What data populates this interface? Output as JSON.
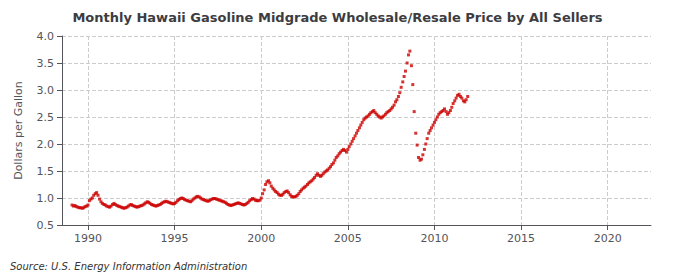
{
  "chart_data": {
    "type": "scatter",
    "title": "Monthly Hawaii Gasoline Midgrade Wholesale/Resale Price by All Sellers",
    "ylabel": "Dollars per Gallon",
    "annotations": [
      "Source: U.S. Energy Information Administration"
    ],
    "color": "#cc0000",
    "marker": "square",
    "grid": true,
    "xlim": [
      1988.5,
      2022.5
    ],
    "xticks": [
      1990,
      1995,
      2000,
      2005,
      2010,
      2015,
      2020
    ],
    "ylim": [
      0.5,
      4.0
    ],
    "yticks": [
      0.5,
      {
        "value": 1.0,
        "label": "1.0"
      },
      1.5,
      {
        "value": 2.0,
        "label": "2.0"
      },
      2.5,
      {
        "value": 3.0,
        "label": "3.0"
      },
      3.5,
      {
        "value": 4.0,
        "label": "4.0"
      }
    ],
    "x": [
      1989.08,
      1989.17,
      1989.25,
      1989.33,
      1989.42,
      1989.5,
      1989.58,
      1989.67,
      1989.75,
      1989.83,
      1989.92,
      1990.0,
      1990.08,
      1990.17,
      1990.25,
      1990.33,
      1990.42,
      1990.5,
      1990.58,
      1990.67,
      1990.75,
      1990.83,
      1990.92,
      1991.0,
      1991.08,
      1991.17,
      1991.25,
      1991.33,
      1991.42,
      1991.5,
      1991.58,
      1991.67,
      1991.75,
      1991.83,
      1991.92,
      1992.0,
      1992.08,
      1992.17,
      1992.25,
      1992.33,
      1992.42,
      1992.5,
      1992.58,
      1992.67,
      1992.75,
      1992.83,
      1992.92,
      1993.0,
      1993.08,
      1993.17,
      1993.25,
      1993.33,
      1993.42,
      1993.5,
      1993.58,
      1993.67,
      1993.75,
      1993.83,
      1993.92,
      1994.0,
      1994.08,
      1994.17,
      1994.25,
      1994.33,
      1994.42,
      1994.5,
      1994.58,
      1994.67,
      1994.75,
      1994.83,
      1994.92,
      1995.0,
      1995.08,
      1995.17,
      1995.25,
      1995.33,
      1995.42,
      1995.5,
      1995.58,
      1995.67,
      1995.75,
      1995.83,
      1995.92,
      1996.0,
      1996.08,
      1996.17,
      1996.25,
      1996.33,
      1996.42,
      1996.5,
      1996.58,
      1996.67,
      1996.75,
      1996.83,
      1996.92,
      1997.0,
      1997.08,
      1997.17,
      1997.25,
      1997.33,
      1997.42,
      1997.5,
      1997.58,
      1997.67,
      1997.75,
      1997.83,
      1997.92,
      1998.0,
      1998.08,
      1998.17,
      1998.25,
      1998.33,
      1998.42,
      1998.5,
      1998.58,
      1998.67,
      1998.75,
      1998.83,
      1998.92,
      1999.0,
      1999.08,
      1999.17,
      1999.25,
      1999.33,
      1999.42,
      1999.5,
      1999.58,
      1999.67,
      1999.75,
      1999.83,
      1999.92,
      2000.0,
      2000.08,
      2000.17,
      2000.25,
      2000.33,
      2000.42,
      2000.5,
      2000.58,
      2000.67,
      2000.75,
      2000.83,
      2000.92,
      2001.0,
      2001.08,
      2001.17,
      2001.25,
      2001.33,
      2001.42,
      2001.5,
      2001.58,
      2001.67,
      2001.75,
      2001.83,
      2001.92,
      2002.0,
      2002.08,
      2002.17,
      2002.25,
      2002.33,
      2002.42,
      2002.5,
      2002.58,
      2002.67,
      2002.75,
      2002.83,
      2002.92,
      2003.0,
      2003.08,
      2003.17,
      2003.25,
      2003.33,
      2003.42,
      2003.5,
      2003.58,
      2003.67,
      2003.75,
      2003.83,
      2003.92,
      2004.0,
      2004.08,
      2004.17,
      2004.25,
      2004.33,
      2004.42,
      2004.5,
      2004.58,
      2004.67,
      2004.75,
      2004.83,
      2004.92,
      2005.0,
      2005.08,
      2005.17,
      2005.25,
      2005.33,
      2005.42,
      2005.5,
      2005.58,
      2005.67,
      2005.75,
      2005.83,
      2005.92,
      2006.0,
      2006.08,
      2006.17,
      2006.25,
      2006.33,
      2006.42,
      2006.5,
      2006.58,
      2006.67,
      2006.75,
      2006.83,
      2006.92,
      2007.0,
      2007.08,
      2007.17,
      2007.25,
      2007.33,
      2007.42,
      2007.5,
      2007.58,
      2007.67,
      2007.75,
      2007.83,
      2007.92,
      2008.0,
      2008.08,
      2008.17,
      2008.25,
      2008.33,
      2008.42,
      2008.5,
      2008.58,
      2008.67,
      2008.75,
      2008.83,
      2008.92,
      2009.0,
      2009.08,
      2009.17,
      2009.25,
      2009.33,
      2009.42,
      2009.5,
      2009.58,
      2009.67,
      2009.75,
      2009.83,
      2009.92,
      2010.0,
      2010.08,
      2010.17,
      2010.25,
      2010.33,
      2010.42,
      2010.5,
      2010.58,
      2010.67,
      2010.75,
      2010.83,
      2010.92,
      2011.0,
      2011.08,
      2011.17,
      2011.25,
      2011.33,
      2011.42,
      2011.5,
      2011.58,
      2011.67,
      2011.75,
      2011.83,
      2011.92
    ],
    "values": [
      0.87,
      0.85,
      0.86,
      0.84,
      0.83,
      0.82,
      0.82,
      0.81,
      0.82,
      0.84,
      0.85,
      0.87,
      0.95,
      0.98,
      1.0,
      1.05,
      1.08,
      1.1,
      1.05,
      0.98,
      0.93,
      0.9,
      0.88,
      0.87,
      0.85,
      0.84,
      0.83,
      0.85,
      0.88,
      0.9,
      0.88,
      0.86,
      0.85,
      0.84,
      0.83,
      0.82,
      0.81,
      0.82,
      0.83,
      0.85,
      0.87,
      0.88,
      0.86,
      0.85,
      0.84,
      0.83,
      0.84,
      0.85,
      0.86,
      0.87,
      0.89,
      0.91,
      0.93,
      0.92,
      0.9,
      0.88,
      0.87,
      0.86,
      0.85,
      0.86,
      0.87,
      0.88,
      0.9,
      0.92,
      0.93,
      0.94,
      0.93,
      0.92,
      0.91,
      0.9,
      0.89,
      0.9,
      0.92,
      0.95,
      0.97,
      0.99,
      1.0,
      0.99,
      0.97,
      0.96,
      0.95,
      0.94,
      0.93,
      0.95,
      0.98,
      1.0,
      1.02,
      1.03,
      1.02,
      1.0,
      0.98,
      0.97,
      0.96,
      0.95,
      0.94,
      0.95,
      0.97,
      0.98,
      0.99,
      0.99,
      0.98,
      0.97,
      0.96,
      0.95,
      0.94,
      0.93,
      0.92,
      0.9,
      0.88,
      0.87,
      0.86,
      0.87,
      0.88,
      0.89,
      0.9,
      0.91,
      0.9,
      0.89,
      0.88,
      0.87,
      0.88,
      0.9,
      0.92,
      0.95,
      0.97,
      0.99,
      0.98,
      0.96,
      0.95,
      0.95,
      0.96,
      1.0,
      1.08,
      1.15,
      1.25,
      1.3,
      1.32,
      1.28,
      1.22,
      1.18,
      1.15,
      1.12,
      1.1,
      1.07,
      1.05,
      1.05,
      1.07,
      1.1,
      1.12,
      1.13,
      1.1,
      1.06,
      1.03,
      1.02,
      1.02,
      1.03,
      1.05,
      1.08,
      1.12,
      1.15,
      1.18,
      1.2,
      1.22,
      1.25,
      1.28,
      1.3,
      1.32,
      1.35,
      1.38,
      1.42,
      1.45,
      1.42,
      1.4,
      1.42,
      1.45,
      1.48,
      1.5,
      1.52,
      1.55,
      1.58,
      1.62,
      1.65,
      1.7,
      1.75,
      1.78,
      1.82,
      1.85,
      1.88,
      1.9,
      1.88,
      1.85,
      1.9,
      1.95,
      2.0,
      2.05,
      2.1,
      2.15,
      2.2,
      2.25,
      2.3,
      2.35,
      2.4,
      2.45,
      2.48,
      2.5,
      2.52,
      2.55,
      2.58,
      2.6,
      2.62,
      2.58,
      2.55,
      2.52,
      2.5,
      2.48,
      2.5,
      2.52,
      2.55,
      2.58,
      2.6,
      2.62,
      2.65,
      2.68,
      2.72,
      2.78,
      2.82,
      2.88,
      2.95,
      3.05,
      3.15,
      3.25,
      3.35,
      3.5,
      3.65,
      3.72,
      3.45,
      3.1,
      2.6,
      2.2,
      1.98,
      1.75,
      1.7,
      1.72,
      1.8,
      1.9,
      2.0,
      2.1,
      2.2,
      2.25,
      2.3,
      2.35,
      2.4,
      2.45,
      2.5,
      2.55,
      2.58,
      2.6,
      2.62,
      2.65,
      2.6,
      2.55,
      2.58,
      2.62,
      2.68,
      2.75,
      2.8,
      2.85,
      2.9,
      2.92,
      2.88,
      2.85,
      2.8,
      2.78,
      2.82,
      2.88
    ]
  }
}
